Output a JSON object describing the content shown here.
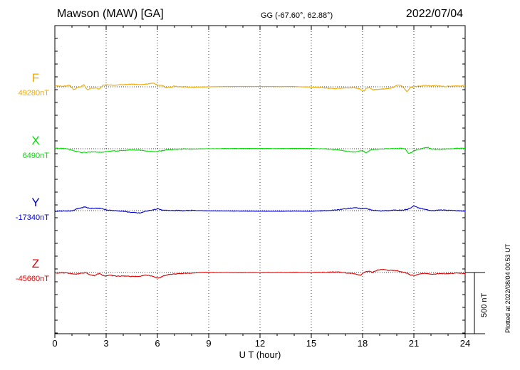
{
  "header": {
    "station": "Mawson (MAW)  [GA]",
    "coords": "GG (-67.60°,  62.88°)",
    "date": "2022/07/04"
  },
  "footer": {
    "plotted": "Plotted at 2022/08/04 00:53 UT",
    "scale_label": "500 nT"
  },
  "chart_data": {
    "type": "line",
    "title": "Mawson (MAW)  [GA]",
    "xlabel": "U T (hour)",
    "ylabel": "",
    "xlim": [
      0,
      24
    ],
    "x_ticks": [
      0,
      3,
      6,
      9,
      12,
      15,
      18,
      21,
      24
    ],
    "x_tick_labels": [
      "0",
      "3",
      "6",
      "9",
      "12",
      "15",
      "18",
      "21",
      "24"
    ],
    "grid": true,
    "scale_bar_nT": 500,
    "series": [
      {
        "name": "F",
        "baseline_label": "49280nT",
        "baseline_nT": 49280,
        "color": "#f0a800",
        "points": [
          [
            0,
            6
          ],
          [
            0.5,
            5
          ],
          [
            0.9,
            10
          ],
          [
            1.1,
            -25
          ],
          [
            1.3,
            -8
          ],
          [
            1.5,
            0
          ],
          [
            1.7,
            15
          ],
          [
            1.9,
            -25
          ],
          [
            2.1,
            -12
          ],
          [
            2.4,
            -8
          ],
          [
            2.6,
            -20
          ],
          [
            2.8,
            10
          ],
          [
            3.0,
            18
          ],
          [
            3.5,
            12
          ],
          [
            4.0,
            18
          ],
          [
            4.5,
            22
          ],
          [
            5.0,
            17
          ],
          [
            5.5,
            25
          ],
          [
            5.8,
            28
          ],
          [
            6.0,
            15
          ],
          [
            6.3,
            10
          ],
          [
            6.5,
            -5
          ],
          [
            6.8,
            -2
          ],
          [
            7.0,
            5
          ],
          [
            7.5,
            0
          ],
          [
            8.0,
            -3
          ],
          [
            8.5,
            -2
          ],
          [
            9.0,
            0
          ],
          [
            9.5,
            1
          ],
          [
            10.0,
            2
          ],
          [
            11.0,
            3
          ],
          [
            12.0,
            3
          ],
          [
            13.0,
            2
          ],
          [
            14.0,
            2
          ],
          [
            15.0,
            -2
          ],
          [
            15.5,
            -5
          ],
          [
            16.0,
            -12
          ],
          [
            16.5,
            -14
          ],
          [
            17.0,
            -10
          ],
          [
            17.3,
            -8
          ],
          [
            17.5,
            -5
          ],
          [
            17.7,
            -12
          ],
          [
            17.9,
            -22
          ],
          [
            18.0,
            -26
          ],
          [
            18.1,
            -33
          ],
          [
            18.2,
            -12
          ],
          [
            18.4,
            -5
          ],
          [
            18.6,
            -25
          ],
          [
            19.0,
            -20
          ],
          [
            19.5,
            -15
          ],
          [
            19.8,
            -5
          ],
          [
            20.0,
            10
          ],
          [
            20.2,
            14
          ],
          [
            20.4,
            -8
          ],
          [
            20.6,
            -40
          ],
          [
            20.8,
            -5
          ],
          [
            21.0,
            0
          ],
          [
            21.3,
            5
          ],
          [
            21.7,
            12
          ],
          [
            22.0,
            5
          ],
          [
            22.3,
            10
          ],
          [
            22.8,
            2
          ],
          [
            23.2,
            6
          ],
          [
            23.7,
            8
          ],
          [
            24.0,
            10
          ]
        ]
      },
      {
        "name": "X",
        "baseline_label": "6490nT",
        "baseline_nT": 6490,
        "color": "#00dd00",
        "points": [
          [
            0,
            3
          ],
          [
            0.3,
            3
          ],
          [
            0.7,
            0
          ],
          [
            1.0,
            -12
          ],
          [
            1.3,
            -22
          ],
          [
            1.6,
            -32
          ],
          [
            1.9,
            -28
          ],
          [
            2.3,
            -25
          ],
          [
            2.7,
            -30
          ],
          [
            3.0,
            -22
          ],
          [
            3.5,
            -18
          ],
          [
            4.0,
            -15
          ],
          [
            4.5,
            -10
          ],
          [
            5.0,
            -12
          ],
          [
            5.5,
            -20
          ],
          [
            5.8,
            -25
          ],
          [
            6.1,
            -20
          ],
          [
            6.5,
            -10
          ],
          [
            7.0,
            -5
          ],
          [
            7.5,
            -2
          ],
          [
            8.0,
            -3
          ],
          [
            8.5,
            -1
          ],
          [
            9.0,
            0
          ],
          [
            9.5,
            1
          ],
          [
            10.0,
            2
          ],
          [
            11.0,
            2
          ],
          [
            12.0,
            2
          ],
          [
            13.0,
            1
          ],
          [
            14.0,
            3
          ],
          [
            15.0,
            2
          ],
          [
            15.5,
            0
          ],
          [
            16.0,
            -2
          ],
          [
            16.5,
            -8
          ],
          [
            17.0,
            -20
          ],
          [
            17.3,
            -25
          ],
          [
            17.5,
            -28
          ],
          [
            17.8,
            -20
          ],
          [
            18.0,
            -15
          ],
          [
            18.2,
            -35
          ],
          [
            18.5,
            -8
          ],
          [
            19.0,
            -2
          ],
          [
            19.5,
            0
          ],
          [
            20.0,
            2
          ],
          [
            20.3,
            5
          ],
          [
            20.5,
            -5
          ],
          [
            20.7,
            -40
          ],
          [
            20.9,
            -30
          ],
          [
            21.0,
            -15
          ],
          [
            21.2,
            -8
          ],
          [
            21.5,
            2
          ],
          [
            21.8,
            12
          ],
          [
            22.0,
            -2
          ],
          [
            22.5,
            -5
          ],
          [
            23.0,
            -2
          ],
          [
            23.5,
            3
          ],
          [
            24.0,
            2
          ]
        ]
      },
      {
        "name": "Y",
        "baseline_label": "-17340nT",
        "baseline_nT": -17340,
        "color": "#0000cc",
        "points": [
          [
            0,
            -5
          ],
          [
            0.5,
            -3
          ],
          [
            1.0,
            -2
          ],
          [
            1.3,
            15
          ],
          [
            1.6,
            25
          ],
          [
            1.8,
            30
          ],
          [
            2.0,
            18
          ],
          [
            2.5,
            20
          ],
          [
            2.8,
            15
          ],
          [
            3.0,
            5
          ],
          [
            3.5,
            0
          ],
          [
            4.0,
            -5
          ],
          [
            4.5,
            -15
          ],
          [
            5.0,
            -20
          ],
          [
            5.3,
            -5
          ],
          [
            5.6,
            2
          ],
          [
            6.0,
            15
          ],
          [
            6.3,
            2
          ],
          [
            6.8,
            3
          ],
          [
            7.5,
            -1
          ],
          [
            8.0,
            2
          ],
          [
            8.5,
            0
          ],
          [
            9.0,
            -2
          ],
          [
            10.0,
            -3
          ],
          [
            11.0,
            -4
          ],
          [
            12.0,
            -5
          ],
          [
            13.0,
            -5
          ],
          [
            14.0,
            -4
          ],
          [
            15.0,
            -5
          ],
          [
            15.5,
            -2
          ],
          [
            16.0,
            0
          ],
          [
            16.5,
            5
          ],
          [
            17.0,
            15
          ],
          [
            17.3,
            20
          ],
          [
            17.5,
            25
          ],
          [
            17.8,
            18
          ],
          [
            18.0,
            15
          ],
          [
            18.2,
            20
          ],
          [
            18.5,
            5
          ],
          [
            19.0,
            -2
          ],
          [
            19.5,
            0
          ],
          [
            20.0,
            5
          ],
          [
            20.3,
            3
          ],
          [
            20.6,
            10
          ],
          [
            20.8,
            20
          ],
          [
            21.0,
            40
          ],
          [
            21.2,
            25
          ],
          [
            21.5,
            15
          ],
          [
            22.0,
            0
          ],
          [
            22.5,
            5
          ],
          [
            23.0,
            3
          ],
          [
            23.5,
            0
          ],
          [
            24.0,
            -4
          ]
        ]
      },
      {
        "name": "Z",
        "baseline_label": "-45660nT",
        "baseline_nT": -45660,
        "color": "#dd0000",
        "points": [
          [
            0,
            -5
          ],
          [
            0.5,
            -2
          ],
          [
            1.0,
            -10
          ],
          [
            1.3,
            -12
          ],
          [
            1.6,
            -5
          ],
          [
            1.8,
            0
          ],
          [
            2.0,
            -15
          ],
          [
            2.3,
            -25
          ],
          [
            2.6,
            -8
          ],
          [
            2.9,
            -28
          ],
          [
            3.2,
            -22
          ],
          [
            3.6,
            -30
          ],
          [
            4.0,
            -28
          ],
          [
            4.5,
            -32
          ],
          [
            5.0,
            -30
          ],
          [
            5.3,
            -20
          ],
          [
            5.6,
            -25
          ],
          [
            5.9,
            -40
          ],
          [
            6.1,
            -45
          ],
          [
            6.4,
            -25
          ],
          [
            6.7,
            -15
          ],
          [
            7.0,
            -12
          ],
          [
            7.5,
            -8
          ],
          [
            8.0,
            -5
          ],
          [
            8.5,
            0
          ],
          [
            9.0,
            2
          ],
          [
            9.5,
            0
          ],
          [
            10.0,
            0
          ],
          [
            11.0,
            -1
          ],
          [
            12.0,
            0
          ],
          [
            13.0,
            0
          ],
          [
            14.0,
            1
          ],
          [
            15.0,
            0
          ],
          [
            15.5,
            2
          ],
          [
            16.0,
            2
          ],
          [
            16.5,
            5
          ],
          [
            17.0,
            -3
          ],
          [
            17.3,
            -5
          ],
          [
            17.6,
            -12
          ],
          [
            17.9,
            -20
          ],
          [
            18.1,
            2
          ],
          [
            18.4,
            10
          ],
          [
            18.6,
            2
          ],
          [
            18.9,
            20
          ],
          [
            19.2,
            25
          ],
          [
            19.5,
            18
          ],
          [
            20.0,
            15
          ],
          [
            20.3,
            5
          ],
          [
            20.6,
            -5
          ],
          [
            20.8,
            -20
          ],
          [
            21.0,
            -25
          ],
          [
            21.3,
            -15
          ],
          [
            21.6,
            -5
          ],
          [
            22.0,
            -15
          ],
          [
            22.5,
            -10
          ],
          [
            23.0,
            -8
          ],
          [
            23.5,
            -5
          ],
          [
            24.0,
            -7
          ]
        ]
      }
    ]
  }
}
